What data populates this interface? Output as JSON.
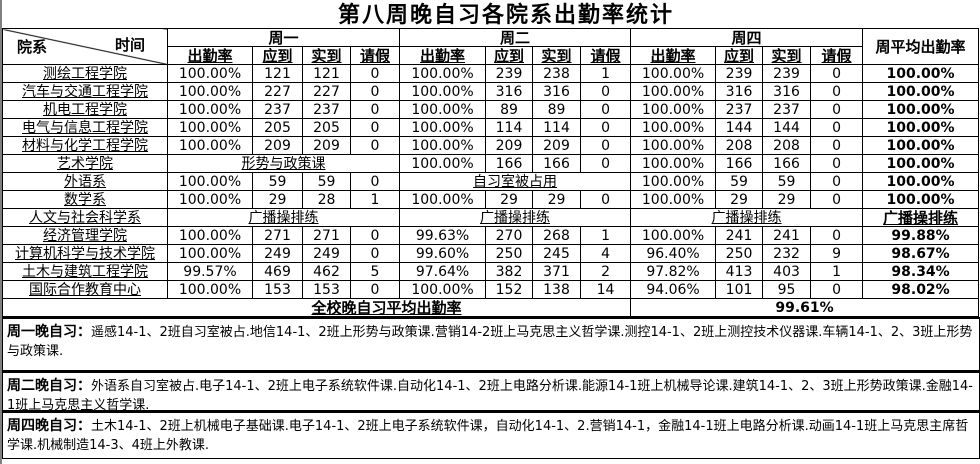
{
  "title": "第八周晚自习各院系出勤率统计",
  "header": {
    "dept_label": "院系",
    "time_label": "时间",
    "days": [
      "周一",
      "周二",
      "周四"
    ],
    "sub": [
      "出勤率",
      "应到",
      "实到",
      "请假"
    ],
    "avg": "周平均出勤率"
  },
  "rows": [
    {
      "name": "测绘工程学院",
      "d": [
        [
          "100.00%",
          "121",
          "121",
          "0"
        ],
        [
          "100.00%",
          "239",
          "238",
          "1"
        ],
        [
          "100.00%",
          "239",
          "239",
          "0"
        ]
      ],
      "avg": "100.00%"
    },
    {
      "name": "汽车与交通工程学院",
      "d": [
        [
          "100.00%",
          "227",
          "227",
          "0"
        ],
        [
          "100.00%",
          "316",
          "316",
          "0"
        ],
        [
          "100.00%",
          "316",
          "316",
          "0"
        ]
      ],
      "avg": "100.00%"
    },
    {
      "name": "机电工程学院",
      "d": [
        [
          "100.00%",
          "237",
          "237",
          "0"
        ],
        [
          "100.00%",
          "89",
          "89",
          "0"
        ],
        [
          "100.00%",
          "237",
          "237",
          "0"
        ]
      ],
      "avg": "100.00%"
    },
    {
      "name": "电气与信息工程学院",
      "d": [
        [
          "100.00%",
          "205",
          "205",
          "0"
        ],
        [
          "100.00%",
          "114",
          "114",
          "0"
        ],
        [
          "100.00%",
          "144",
          "144",
          "0"
        ]
      ],
      "avg": "100.00%"
    },
    {
      "name": "材料与化学工程学院",
      "d": [
        [
          "100.00%",
          "209",
          "209",
          "0"
        ],
        [
          "100.00%",
          "209",
          "209",
          "0"
        ],
        [
          "100.00%",
          "208",
          "208",
          "0"
        ]
      ],
      "avg": "100.00%"
    },
    {
      "name": "艺术学院",
      "d": [
        "形势与政策课",
        [
          "100.00%",
          "166",
          "166",
          "0"
        ],
        [
          "100.00%",
          "166",
          "166",
          "0"
        ]
      ],
      "avg": "100.00%"
    },
    {
      "name": "外语系",
      "d": [
        [
          "100.00%",
          "59",
          "59",
          "0"
        ],
        "自习室被占用",
        [
          "100.00%",
          "59",
          "59",
          "0"
        ]
      ],
      "avg": "100.00%"
    },
    {
      "name": "数学系",
      "d": [
        [
          "100.00%",
          "29",
          "28",
          "1"
        ],
        [
          "100.00%",
          "29",
          "29",
          "0"
        ],
        [
          "100.00%",
          "29",
          "29",
          "0"
        ]
      ],
      "avg": "100.00%"
    },
    {
      "name": "人文与社会科学系",
      "d": [
        "广播操排练",
        "广播操排练",
        "广播操排练"
      ],
      "avg": "广播操排练"
    },
    {
      "name": "经济管理学院",
      "d": [
        [
          "100.00%",
          "271",
          "271",
          "0"
        ],
        [
          "99.63%",
          "270",
          "268",
          "1"
        ],
        [
          "100.00%",
          "241",
          "241",
          "0"
        ]
      ],
      "avg": "99.88%"
    },
    {
      "name": "计算机科学与技术学院",
      "d": [
        [
          "100.00%",
          "249",
          "249",
          "0"
        ],
        [
          "99.60%",
          "250",
          "245",
          "4"
        ],
        [
          "96.40%",
          "250",
          "232",
          "9"
        ]
      ],
      "avg": "98.67%"
    },
    {
      "name": "土木与建筑工程学院",
      "d": [
        [
          "99.57%",
          "469",
          "462",
          "5"
        ],
        [
          "97.64%",
          "382",
          "371",
          "2"
        ],
        [
          "97.82%",
          "413",
          "403",
          "1"
        ]
      ],
      "avg": "98.34%"
    },
    {
      "name": "国际合作教育中心",
      "d": [
        [
          "100.00%",
          "153",
          "153",
          "0"
        ],
        [
          "100.00%",
          "152",
          "138",
          "14"
        ],
        [
          "94.06%",
          "101",
          "95",
          "0"
        ]
      ],
      "avg": "98.02%"
    }
  ],
  "total": {
    "label": "全校晚自习平均出勤率",
    "value": "99.61%"
  },
  "notes": [
    {
      "label": "周一晚自习：",
      "text": "遥感14-1、2班自习室被占.地信14-1、2班上形势与政策课.营销14-2班上马克思主义哲学课.测控14-1、2班上测控技术仪器课.车辆14-1、2、3班上形势与政策课."
    },
    {
      "label": "周二晚自习：",
      "text": "外语系自习室被占.电子14-1、2班上电子系统软件课.自动化14-1、2班上电路分析课.能源14-1班上机械导论课.建筑14-1、2、3班上形势政策课.金融14-1班上马克思主义哲学课."
    },
    {
      "label": "周四晚自习：",
      "text": "土木14-1、2班上机械电子基础课.电子14-1、2班上电子系统软件课，自动化14-1、2.营销14-1，金融14-1班上电路分析课.动画14-1班上马克思主席哲学课.机械制造14-3、4班上外教课."
    }
  ]
}
